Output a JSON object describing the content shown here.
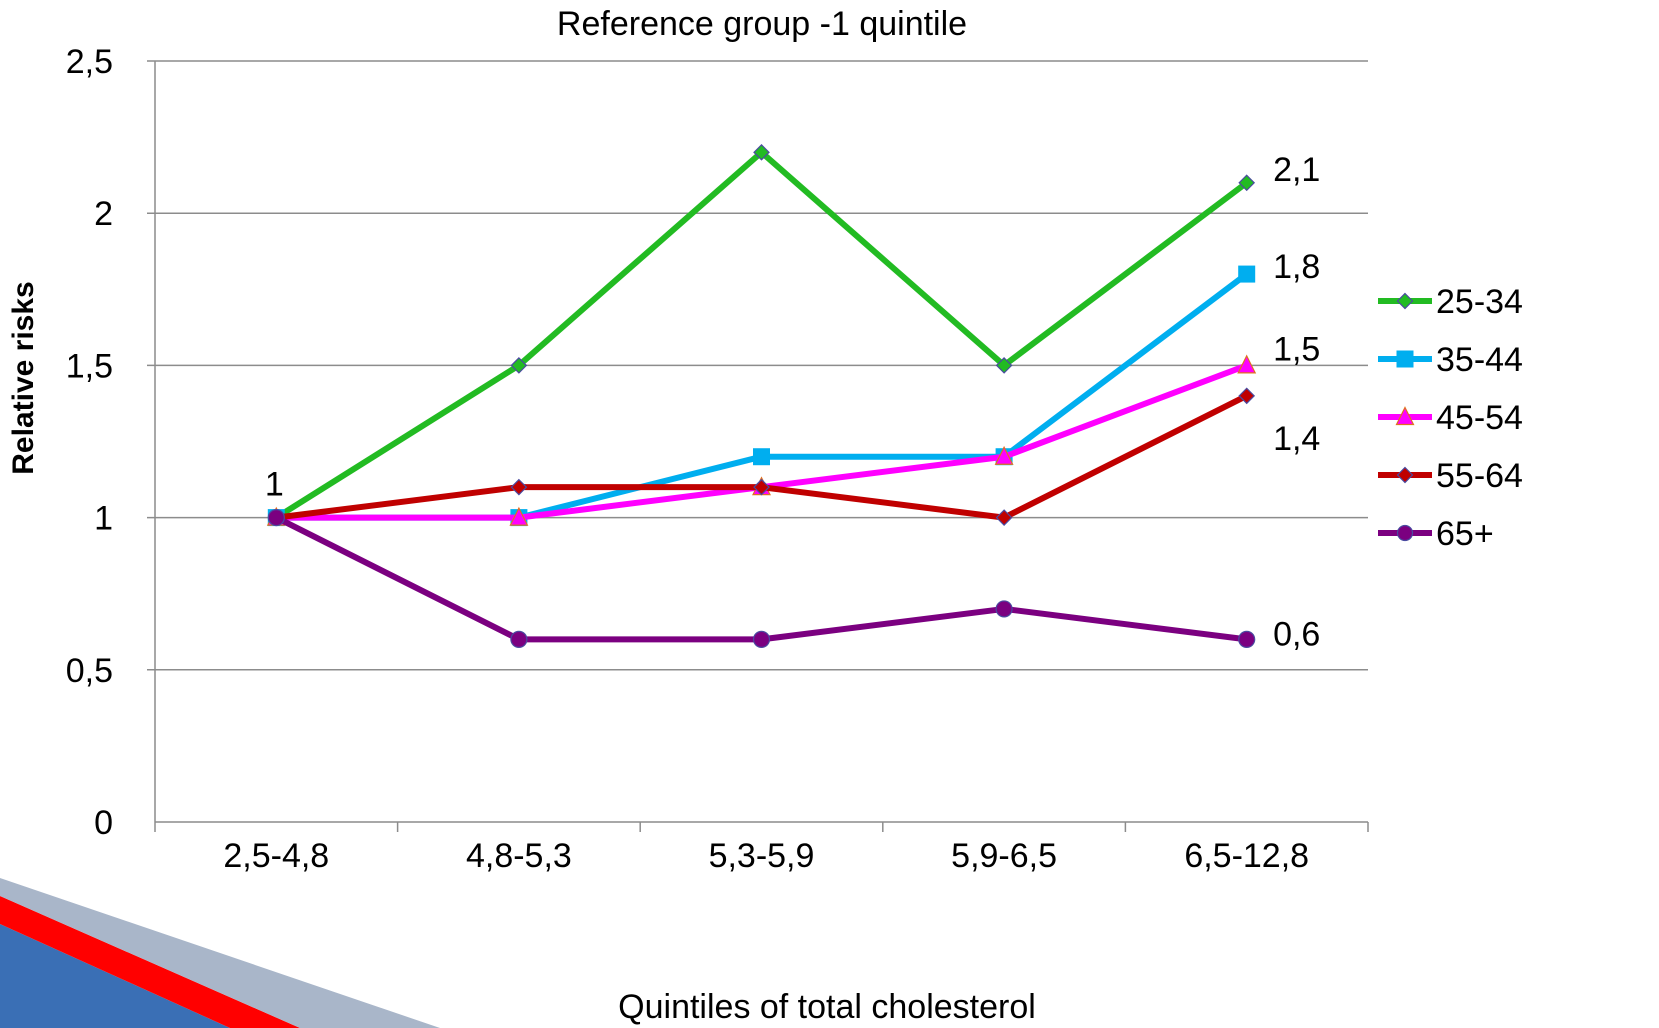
{
  "chart_data": {
    "type": "line",
    "title": "Reference  group -1 quintile",
    "xlabel": "Quintiles of total cholesterol",
    "ylabel": "Relative risks",
    "categories": [
      "2,5-4,8",
      "4,8-5,3",
      "5,3-5,9",
      "5,9-6,5",
      "6,5-12,8"
    ],
    "ylim": [
      0,
      2.5
    ],
    "yticks": [
      0,
      0.5,
      1,
      1.5,
      2,
      2.5
    ],
    "ytick_labels": [
      "0",
      "0,5",
      "1",
      "1,5",
      "2",
      "2,5"
    ],
    "grid": "horizontal",
    "legend": "right",
    "series": [
      {
        "name": "25-34",
        "values": [
          1,
          1.5,
          2.2,
          1.5,
          2.1
        ],
        "color": "#22bb22",
        "marker": "diamond"
      },
      {
        "name": "35-44",
        "values": [
          1,
          1,
          1.2,
          1.2,
          1.8
        ],
        "color": "#00aeef",
        "marker": "square"
      },
      {
        "name": "45-54",
        "values": [
          1,
          1,
          1.1,
          1.2,
          1.5
        ],
        "color": "#ff00ff",
        "marker": "triangle"
      },
      {
        "name": "55-64",
        "values": [
          1,
          1.1,
          1.1,
          1,
          1.4
        ],
        "color": "#c00000",
        "marker": "diamond"
      },
      {
        "name": "65+",
        "values": [
          1,
          0.6,
          0.6,
          0.7,
          0.6
        ],
        "color": "#7b0080",
        "marker": "circle"
      }
    ],
    "annotations": [
      {
        "text": "1",
        "category": 0,
        "value": 1
      },
      {
        "text": "2,1",
        "category": 4,
        "value": 2.1
      },
      {
        "text": "1,8",
        "category": 4,
        "value": 1.8
      },
      {
        "text": "1,5",
        "category": 4,
        "value": 1.5
      },
      {
        "text": "1,4",
        "category": 4,
        "value": 1.4
      },
      {
        "text": "0,6",
        "category": 4,
        "value": 0.6
      }
    ]
  },
  "decoration": {
    "name": "corner-ribbon",
    "colors": [
      "#3a6fb5",
      "#ff0000",
      "#a9b6c9"
    ]
  }
}
